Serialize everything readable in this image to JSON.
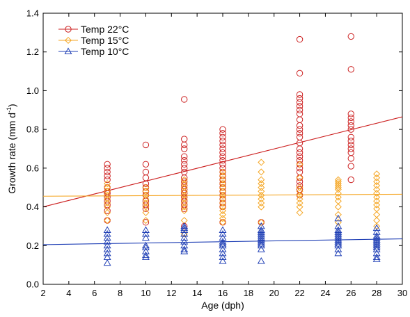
{
  "chart_data": {
    "type": "scatter",
    "title": "",
    "xlabel": "Age (dph)",
    "ylabel": "Growth rate (mm d",
    "ylabel_sup": "-1",
    "ylabel_end": ")",
    "xlim": [
      2,
      30
    ],
    "ylim": [
      0,
      1.4
    ],
    "xticks": [
      2,
      4,
      6,
      8,
      10,
      12,
      14,
      16,
      18,
      20,
      22,
      24,
      26,
      28,
      30
    ],
    "yticks": [
      0.0,
      0.2,
      0.4,
      0.6,
      0.8,
      1.0,
      1.2,
      1.4
    ],
    "ytick_labels": [
      "0.0",
      "0.2",
      "0.4",
      "0.6",
      "0.8",
      "1.0",
      "1.2",
      "1.4"
    ],
    "grid": false,
    "legend_position": "top-left",
    "series": [
      {
        "name": "Temp 22°C",
        "marker": "circle",
        "color": "#cc1f1f",
        "points": [
          [
            7,
            0.62
          ],
          [
            7,
            0.6
          ],
          [
            7,
            0.58
          ],
          [
            7,
            0.56
          ],
          [
            7,
            0.54
          ],
          [
            7,
            0.5
          ],
          [
            7,
            0.48
          ],
          [
            7,
            0.47
          ],
          [
            7,
            0.45
          ],
          [
            7,
            0.43
          ],
          [
            7,
            0.41
          ],
          [
            7,
            0.38
          ],
          [
            7,
            0.33
          ],
          [
            10,
            0.72
          ],
          [
            10,
            0.62
          ],
          [
            10,
            0.58
          ],
          [
            10,
            0.55
          ],
          [
            10,
            0.52
          ],
          [
            10,
            0.5
          ],
          [
            10,
            0.48
          ],
          [
            10,
            0.46
          ],
          [
            10,
            0.43
          ],
          [
            10,
            0.41
          ],
          [
            10,
            0.39
          ],
          [
            10,
            0.32
          ],
          [
            13,
            0.955
          ],
          [
            13,
            0.75
          ],
          [
            13,
            0.72
          ],
          [
            13,
            0.7
          ],
          [
            13,
            0.66
          ],
          [
            13,
            0.64
          ],
          [
            13,
            0.62
          ],
          [
            13,
            0.6
          ],
          [
            13,
            0.58
          ],
          [
            13,
            0.55
          ],
          [
            13,
            0.53
          ],
          [
            13,
            0.51
          ],
          [
            13,
            0.49
          ],
          [
            13,
            0.47
          ],
          [
            13,
            0.45
          ],
          [
            13,
            0.43
          ],
          [
            13,
            0.41
          ],
          [
            13,
            0.39
          ],
          [
            13,
            0.3
          ],
          [
            16,
            0.8
          ],
          [
            16,
            0.78
          ],
          [
            16,
            0.76
          ],
          [
            16,
            0.74
          ],
          [
            16,
            0.72
          ],
          [
            16,
            0.7
          ],
          [
            16,
            0.68
          ],
          [
            16,
            0.66
          ],
          [
            16,
            0.64
          ],
          [
            16,
            0.62
          ],
          [
            16,
            0.6
          ],
          [
            16,
            0.58
          ],
          [
            16,
            0.56
          ],
          [
            16,
            0.54
          ],
          [
            16,
            0.52
          ],
          [
            16,
            0.5
          ],
          [
            16,
            0.48
          ],
          [
            16,
            0.46
          ],
          [
            16,
            0.44
          ],
          [
            16,
            0.42
          ],
          [
            16,
            0.4
          ],
          [
            16,
            0.32
          ],
          [
            19,
            0.32
          ],
          [
            22,
            1.265
          ],
          [
            22,
            1.09
          ],
          [
            22,
            0.98
          ],
          [
            22,
            0.96
          ],
          [
            22,
            0.94
          ],
          [
            22,
            0.92
          ],
          [
            22,
            0.9
          ],
          [
            22,
            0.88
          ],
          [
            22,
            0.85
          ],
          [
            22,
            0.82
          ],
          [
            22,
            0.8
          ],
          [
            22,
            0.78
          ],
          [
            22,
            0.76
          ],
          [
            22,
            0.73
          ],
          [
            22,
            0.7
          ],
          [
            22,
            0.68
          ],
          [
            22,
            0.66
          ],
          [
            22,
            0.64
          ],
          [
            22,
            0.62
          ],
          [
            22,
            0.6
          ],
          [
            22,
            0.58
          ],
          [
            22,
            0.55
          ],
          [
            22,
            0.53
          ],
          [
            22,
            0.51
          ],
          [
            22,
            0.49
          ],
          [
            22,
            0.46
          ],
          [
            26,
            1.28
          ],
          [
            26,
            1.11
          ],
          [
            26,
            0.88
          ],
          [
            26,
            0.86
          ],
          [
            26,
            0.84
          ],
          [
            26,
            0.82
          ],
          [
            26,
            0.8
          ],
          [
            26,
            0.76
          ],
          [
            26,
            0.74
          ],
          [
            26,
            0.72
          ],
          [
            26,
            0.7
          ],
          [
            26,
            0.68
          ],
          [
            26,
            0.65
          ],
          [
            26,
            0.61
          ],
          [
            26,
            0.54
          ]
        ],
        "trend": {
          "x": [
            2,
            30
          ],
          "y": [
            0.4,
            0.865
          ]
        }
      },
      {
        "name": "Temp 15°C",
        "marker": "diamond",
        "color": "#f5a623",
        "points": [
          [
            7,
            0.52
          ],
          [
            7,
            0.5
          ],
          [
            7,
            0.48
          ],
          [
            7,
            0.46
          ],
          [
            7,
            0.44
          ],
          [
            7,
            0.42
          ],
          [
            7,
            0.4
          ],
          [
            7,
            0.37
          ],
          [
            7,
            0.33
          ],
          [
            10,
            0.5
          ],
          [
            10,
            0.48
          ],
          [
            10,
            0.46
          ],
          [
            10,
            0.44
          ],
          [
            10,
            0.42
          ],
          [
            10,
            0.4
          ],
          [
            10,
            0.37
          ],
          [
            10,
            0.33
          ],
          [
            13,
            0.54
          ],
          [
            13,
            0.52
          ],
          [
            13,
            0.5
          ],
          [
            13,
            0.48
          ],
          [
            13,
            0.46
          ],
          [
            13,
            0.44
          ],
          [
            13,
            0.42
          ],
          [
            13,
            0.4
          ],
          [
            13,
            0.38
          ],
          [
            13,
            0.33
          ],
          [
            13,
            0.26
          ],
          [
            16,
            0.58
          ],
          [
            16,
            0.56
          ],
          [
            16,
            0.54
          ],
          [
            16,
            0.52
          ],
          [
            16,
            0.5
          ],
          [
            16,
            0.48
          ],
          [
            16,
            0.46
          ],
          [
            16,
            0.44
          ],
          [
            16,
            0.42
          ],
          [
            16,
            0.4
          ],
          [
            16,
            0.38
          ],
          [
            16,
            0.36
          ],
          [
            16,
            0.34
          ],
          [
            16,
            0.32
          ],
          [
            19,
            0.63
          ],
          [
            19,
            0.58
          ],
          [
            19,
            0.54
          ],
          [
            19,
            0.52
          ],
          [
            19,
            0.5
          ],
          [
            19,
            0.48
          ],
          [
            19,
            0.46
          ],
          [
            19,
            0.44
          ],
          [
            19,
            0.42
          ],
          [
            19,
            0.4
          ],
          [
            19,
            0.32
          ],
          [
            22,
            0.62
          ],
          [
            22,
            0.55
          ],
          [
            22,
            0.5
          ],
          [
            22,
            0.48
          ],
          [
            22,
            0.46
          ],
          [
            22,
            0.44
          ],
          [
            22,
            0.42
          ],
          [
            22,
            0.4
          ],
          [
            22,
            0.37
          ],
          [
            25,
            0.54
          ],
          [
            25,
            0.53
          ],
          [
            25,
            0.52
          ],
          [
            25,
            0.51
          ],
          [
            25,
            0.5
          ],
          [
            25,
            0.49
          ],
          [
            25,
            0.47
          ],
          [
            25,
            0.45
          ],
          [
            25,
            0.43
          ],
          [
            25,
            0.4
          ],
          [
            25,
            0.36
          ],
          [
            25,
            0.32
          ],
          [
            28,
            0.57
          ],
          [
            28,
            0.55
          ],
          [
            28,
            0.53
          ],
          [
            28,
            0.51
          ],
          [
            28,
            0.49
          ],
          [
            28,
            0.47
          ],
          [
            28,
            0.45
          ],
          [
            28,
            0.43
          ],
          [
            28,
            0.41
          ],
          [
            28,
            0.39
          ],
          [
            28,
            0.36
          ],
          [
            28,
            0.33
          ],
          [
            28,
            0.3
          ]
        ],
        "trend": {
          "x": [
            2,
            30
          ],
          "y": [
            0.455,
            0.465
          ]
        }
      },
      {
        "name": "Temp 10°C",
        "marker": "triangle",
        "color": "#1f3fb5",
        "points": [
          [
            7,
            0.28
          ],
          [
            7,
            0.26
          ],
          [
            7,
            0.24
          ],
          [
            7,
            0.22
          ],
          [
            7,
            0.2
          ],
          [
            7,
            0.18
          ],
          [
            7,
            0.16
          ],
          [
            7,
            0.14
          ],
          [
            7,
            0.11
          ],
          [
            10,
            0.28
          ],
          [
            10,
            0.26
          ],
          [
            10,
            0.24
          ],
          [
            10,
            0.2
          ],
          [
            10,
            0.19
          ],
          [
            10,
            0.17
          ],
          [
            10,
            0.15
          ],
          [
            10,
            0.14
          ],
          [
            13,
            0.3
          ],
          [
            13,
            0.29
          ],
          [
            13,
            0.28
          ],
          [
            13,
            0.26
          ],
          [
            13,
            0.24
          ],
          [
            13,
            0.22
          ],
          [
            13,
            0.2
          ],
          [
            13,
            0.18
          ],
          [
            13,
            0.17
          ],
          [
            16,
            0.28
          ],
          [
            16,
            0.26
          ],
          [
            16,
            0.24
          ],
          [
            16,
            0.22
          ],
          [
            16,
            0.21
          ],
          [
            16,
            0.2
          ],
          [
            16,
            0.18
          ],
          [
            16,
            0.16
          ],
          [
            16,
            0.14
          ],
          [
            16,
            0.12
          ],
          [
            19,
            0.3
          ],
          [
            19,
            0.28
          ],
          [
            19,
            0.27
          ],
          [
            19,
            0.26
          ],
          [
            19,
            0.25
          ],
          [
            19,
            0.24
          ],
          [
            19,
            0.23
          ],
          [
            19,
            0.22
          ],
          [
            19,
            0.21
          ],
          [
            19,
            0.2
          ],
          [
            19,
            0.18
          ],
          [
            19,
            0.12
          ],
          [
            25,
            0.34
          ],
          [
            25,
            0.3
          ],
          [
            25,
            0.28
          ],
          [
            25,
            0.27
          ],
          [
            25,
            0.26
          ],
          [
            25,
            0.25
          ],
          [
            25,
            0.24
          ],
          [
            25,
            0.23
          ],
          [
            25,
            0.22
          ],
          [
            25,
            0.21
          ],
          [
            25,
            0.2
          ],
          [
            25,
            0.18
          ],
          [
            25,
            0.16
          ],
          [
            28,
            0.29
          ],
          [
            28,
            0.27
          ],
          [
            28,
            0.25
          ],
          [
            28,
            0.24
          ],
          [
            28,
            0.23
          ],
          [
            28,
            0.22
          ],
          [
            28,
            0.21
          ],
          [
            28,
            0.2
          ],
          [
            28,
            0.19
          ],
          [
            28,
            0.18
          ],
          [
            28,
            0.16
          ],
          [
            28,
            0.14
          ],
          [
            28,
            0.13
          ]
        ],
        "trend": {
          "x": [
            2,
            30
          ],
          "y": [
            0.205,
            0.235
          ]
        }
      }
    ]
  }
}
